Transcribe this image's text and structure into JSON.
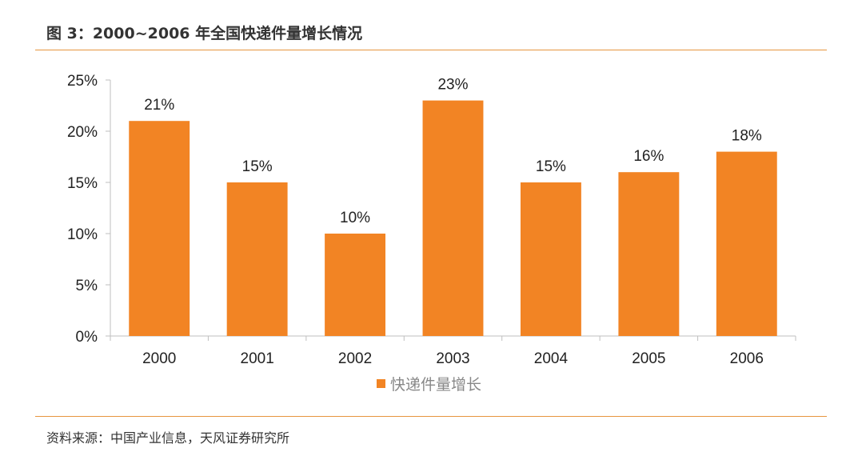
{
  "figure": {
    "title": "图 3：2000~2006 年全国快递件量增长情况",
    "source": "资料来源：中国产业信息，天风证券研究所"
  },
  "colors": {
    "bar": "#f28424",
    "rule": "#e7953f",
    "axis": "#bfbfbf"
  },
  "chart_data": {
    "type": "bar",
    "categories": [
      "2000",
      "2001",
      "2002",
      "2003",
      "2004",
      "2005",
      "2006"
    ],
    "series": [
      {
        "name": "快递件量增长",
        "values": [
          21,
          15,
          10,
          23,
          15,
          16,
          18
        ]
      }
    ],
    "data_labels": [
      "21%",
      "15%",
      "10%",
      "23%",
      "15%",
      "16%",
      "18%"
    ],
    "y_ticks": [
      0,
      5,
      10,
      15,
      20,
      25
    ],
    "y_tick_labels": [
      "0%",
      "5%",
      "10%",
      "15%",
      "20%",
      "25%"
    ],
    "ylim": [
      0,
      25
    ],
    "grid": false,
    "legend_position": "bottom"
  }
}
